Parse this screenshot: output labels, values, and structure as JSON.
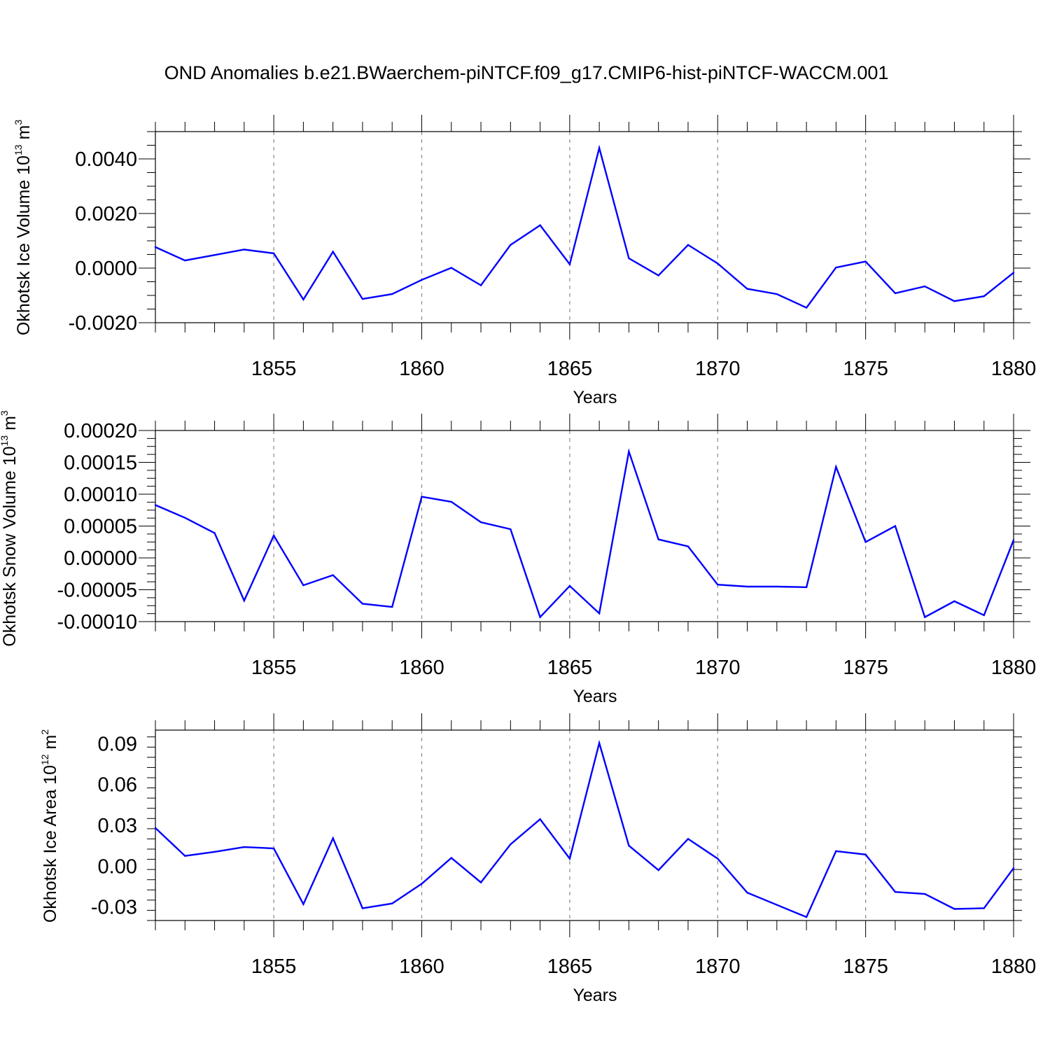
{
  "title": "OND Anomalies b.e21.BWaerchem-piNTCF.f09_g17.CMIP6-hist-piNTCF-WACCM.001",
  "colors": {
    "line": "#0000ff",
    "axis": "#000000",
    "grid": "#888888"
  },
  "chart_data": [
    {
      "type": "line",
      "title": "OND Anomalies b.e21.BWaerchem-piNTCF.f09_g17.CMIP6-hist-piNTCF-WACCM.001",
      "xlabel": "Years",
      "ylabel_main": "Okhotsk Ice Volume 10",
      "ylabel_sup": "13",
      "ylabel_unit": " m",
      "ylabel_unit_sup": "3",
      "xlim": [
        1851,
        1880
      ],
      "ylim": [
        -0.002,
        0.005
      ],
      "xticks": [
        1855,
        1860,
        1865,
        1870,
        1875,
        1880
      ],
      "xtick_labels": [
        "1855",
        "1860",
        "1865",
        "1870",
        "1875",
        "1880"
      ],
      "yticks": [
        -0.002,
        0.0,
        0.002,
        0.004
      ],
      "ytick_labels": [
        "-0.0020",
        "0.0000",
        "0.0020",
        "0.0040"
      ],
      "x": [
        1851,
        1852,
        1853,
        1854,
        1855,
        1856,
        1857,
        1858,
        1859,
        1860,
        1861,
        1862,
        1863,
        1864,
        1865,
        1866,
        1867,
        1868,
        1869,
        1870,
        1871,
        1872,
        1873,
        1874,
        1875,
        1876,
        1877,
        1878,
        1879,
        1880
      ],
      "y": [
        0.00077,
        0.00028,
        0.00048,
        0.00068,
        0.00054,
        -0.00115,
        0.0006,
        -0.00113,
        -0.00095,
        -0.00043,
        1e-05,
        -0.00063,
        0.00085,
        0.00157,
        0.00014,
        0.0044,
        0.00036,
        -0.00027,
        0.00085,
        0.00017,
        -0.00076,
        -0.00095,
        -0.00145,
        2e-05,
        0.00024,
        -0.00092,
        -0.00067,
        -0.00121,
        -0.00103,
        -0.00017
      ]
    },
    {
      "type": "line",
      "xlabel": "Years",
      "ylabel_main": "Okhotsk Snow Volume 10",
      "ylabel_sup": "13",
      "ylabel_unit": " m",
      "ylabel_unit_sup": "3",
      "xlim": [
        1851,
        1880
      ],
      "ylim": [
        -0.0001,
        0.0002
      ],
      "xticks": [
        1855,
        1860,
        1865,
        1870,
        1875,
        1880
      ],
      "xtick_labels": [
        "1855",
        "1860",
        "1865",
        "1870",
        "1875",
        "1880"
      ],
      "yticks": [
        -0.0001,
        -5e-05,
        0.0,
        5e-05,
        0.0001,
        0.00015,
        0.0002
      ],
      "ytick_labels": [
        "-0.00010",
        "-0.00005",
        "0.00000",
        "0.00005",
        "0.00010",
        "0.00015",
        "0.00020"
      ],
      "x": [
        1851,
        1852,
        1853,
        1854,
        1855,
        1856,
        1857,
        1858,
        1859,
        1860,
        1861,
        1862,
        1863,
        1864,
        1865,
        1866,
        1867,
        1868,
        1869,
        1870,
        1871,
        1872,
        1873,
        1874,
        1875,
        1876,
        1877,
        1878,
        1879,
        1880
      ],
      "y": [
        8.3e-05,
        6.3e-05,
        3.9e-05,
        -6.7e-05,
        3.5e-05,
        -4.3e-05,
        -2.7e-05,
        -7.2e-05,
        -7.7e-05,
        9.6e-05,
        8.8e-05,
        5.6e-05,
        4.5e-05,
        -9.3e-05,
        -4.4e-05,
        -8.7e-05,
        0.000167,
        2.9e-05,
        1.8e-05,
        -4.2e-05,
        -4.5e-05,
        -4.5e-05,
        -4.6e-05,
        0.000143,
        2.5e-05,
        5e-05,
        -9.3e-05,
        -6.8e-05,
        -9e-05,
        2.8e-05
      ]
    },
    {
      "type": "line",
      "xlabel": "Years",
      "ylabel_main": "Okhotsk Ice Area 10",
      "ylabel_sup": "12",
      "ylabel_unit": " m",
      "ylabel_unit_sup": "2",
      "xlim": [
        1851,
        1880
      ],
      "ylim": [
        -0.04,
        0.1
      ],
      "xticks": [
        1855,
        1860,
        1865,
        1870,
        1875,
        1880
      ],
      "xtick_labels": [
        "1855",
        "1860",
        "1865",
        "1870",
        "1875",
        "1880"
      ],
      "yticks": [
        -0.03,
        0.0,
        0.03,
        0.06,
        0.09
      ],
      "ytick_labels": [
        "-0.03",
        "0.00",
        "0.03",
        "0.06",
        "0.09"
      ],
      "x": [
        1851,
        1852,
        1853,
        1854,
        1855,
        1856,
        1857,
        1858,
        1859,
        1860,
        1861,
        1862,
        1863,
        1864,
        1865,
        1866,
        1867,
        1868,
        1869,
        1870,
        1871,
        1872,
        1873,
        1874,
        1875,
        1876,
        1877,
        1878,
        1879,
        1880
      ],
      "y": [
        0.028,
        0.0075,
        0.0105,
        0.014,
        0.013,
        -0.028,
        0.0205,
        -0.031,
        -0.0275,
        -0.013,
        0.006,
        -0.012,
        0.016,
        0.0345,
        0.0055,
        0.0905,
        0.015,
        -0.003,
        0.02,
        0.0055,
        -0.0195,
        -0.0285,
        -0.0375,
        0.011,
        0.0085,
        -0.019,
        -0.0205,
        -0.0315,
        -0.031,
        -0.0015
      ]
    }
  ]
}
